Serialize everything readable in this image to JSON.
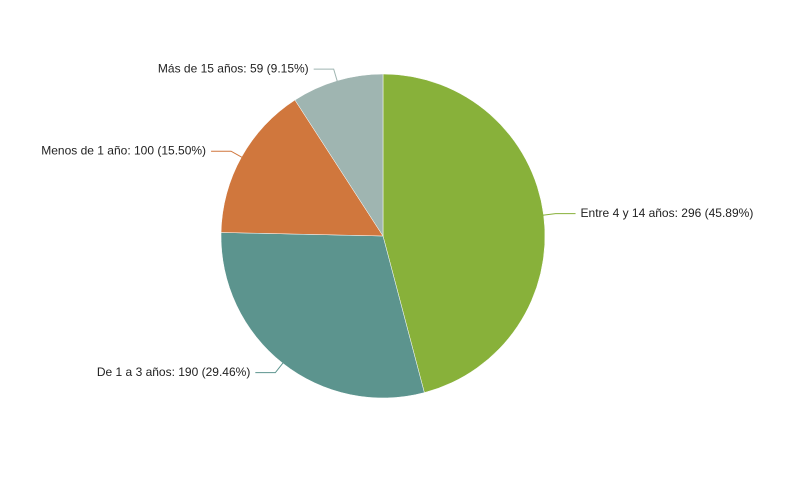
{
  "chart_data": {
    "type": "pie",
    "values": [
      296,
      190,
      100,
      59
    ],
    "value_labels": [
      "Entre 4 y 14 años: 296 (45.89%)",
      "De 1 a 3 años: 190 (29.46%)",
      "Menos de 1 año: 100 (15.50%)",
      "Más de 15 años: 59 (9.15%)"
    ],
    "colors": [
      "#88b13a",
      "#5c948e",
      "#d0773d",
      "#9fb5b1"
    ]
  }
}
